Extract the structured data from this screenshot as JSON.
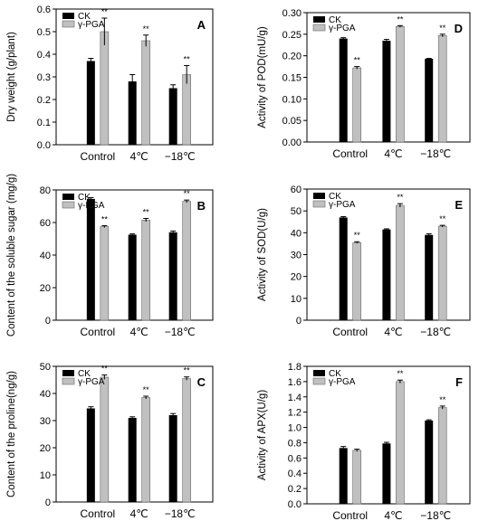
{
  "categories": [
    "Control",
    "4℃",
    "−18℃"
  ],
  "legend": [
    "CK",
    "γ-PGA"
  ],
  "colors": {
    "ck": "#000000",
    "pga": "#c0c0c0"
  },
  "chart_data": [
    {
      "panel": "A",
      "type": "bar",
      "ylabel": "Dry weight (g/plant)",
      "ylim": [
        0,
        0.6
      ],
      "yticks": [
        0.0,
        0.1,
        0.2,
        0.3,
        0.4,
        0.5,
        0.6
      ],
      "ytick_labels": [
        "0.0",
        "0.1",
        "0.2",
        "0.3",
        "0.4",
        "0.5",
        "0.6"
      ],
      "categories": [
        "Control",
        "4℃",
        "−18℃"
      ],
      "series": [
        {
          "name": "CK",
          "values": [
            0.37,
            0.28,
            0.25
          ],
          "errors": [
            0.012,
            0.03,
            0.015
          ],
          "sig": [
            "",
            "",
            ""
          ]
        },
        {
          "name": "γ-PGA",
          "values": [
            0.5,
            0.46,
            0.31
          ],
          "errors": [
            0.06,
            0.025,
            0.04
          ],
          "sig": [
            "**",
            "**",
            "**"
          ]
        }
      ],
      "grid": false,
      "legend_position": "top-left"
    },
    {
      "panel": "B",
      "type": "bar",
      "ylabel": "Content of the soluble sugar (mg/g)",
      "ylim": [
        0,
        80
      ],
      "yticks": [
        0,
        20,
        40,
        60,
        80
      ],
      "ytick_labels": [
        "0",
        "20",
        "40",
        "60",
        "80"
      ],
      "categories": [
        "Control",
        "4℃",
        "−18℃"
      ],
      "series": [
        {
          "name": "CK",
          "values": [
            74.5,
            52.5,
            54
          ],
          "errors": [
            0.8,
            0.5,
            0.8
          ],
          "sig": [
            "",
            "",
            ""
          ]
        },
        {
          "name": "γ-PGA",
          "values": [
            57.5,
            61.5,
            73
          ],
          "errors": [
            0.6,
            1.0,
            0.8
          ],
          "sig": [
            "**",
            "**",
            "**"
          ]
        }
      ],
      "grid": false,
      "legend_position": "top-left"
    },
    {
      "panel": "C",
      "type": "bar",
      "ylabel": "Content of the proline(ng/g)",
      "ylim": [
        0,
        50
      ],
      "yticks": [
        0,
        10,
        20,
        30,
        40,
        50
      ],
      "ytick_labels": [
        "0",
        "10",
        "20",
        "30",
        "40",
        "50"
      ],
      "categories": [
        "Control",
        "4℃",
        "−18℃"
      ],
      "series": [
        {
          "name": "CK",
          "values": [
            34.5,
            31,
            32
          ],
          "errors": [
            0.6,
            0.4,
            0.6
          ],
          "sig": [
            "",
            "",
            ""
          ]
        },
        {
          "name": "γ-PGA",
          "values": [
            46,
            38.5,
            45.5
          ],
          "errors": [
            0.8,
            0.5,
            0.6
          ],
          "sig": [
            "**",
            "**",
            "**"
          ]
        }
      ],
      "grid": false,
      "legend_position": "top-left"
    },
    {
      "panel": "D",
      "type": "bar",
      "ylabel": "Activity of POD(mU/g)",
      "ylim": [
        0,
        0.3
      ],
      "yticks": [
        0,
        0.05,
        0.1,
        0.15,
        0.2,
        0.25,
        0.3
      ],
      "ytick_labels": [
        "0.00",
        "0.05",
        "0.10",
        "0.15",
        "0.20",
        "0.25",
        "0.30"
      ],
      "categories": [
        "Control",
        "4℃",
        "−18℃"
      ],
      "series": [
        {
          "name": "CK",
          "values": [
            0.24,
            0.235,
            0.193
          ],
          "errors": [
            0.002,
            0.003,
            0.001
          ],
          "sig": [
            "",
            "",
            ""
          ]
        },
        {
          "name": "γ-PGA",
          "values": [
            0.172,
            0.268,
            0.247
          ],
          "errors": [
            0.003,
            0.002,
            0.003
          ],
          "sig": [
            "**",
            "**",
            "**"
          ]
        }
      ],
      "grid": false,
      "legend_position": "top-left"
    },
    {
      "panel": "E",
      "type": "bar",
      "ylabel": "Activity of SOD(U/g)",
      "ylim": [
        0,
        60
      ],
      "yticks": [
        0,
        10,
        20,
        30,
        40,
        50,
        60
      ],
      "ytick_labels": [
        "0",
        "10",
        "20",
        "30",
        "40",
        "50",
        "60"
      ],
      "categories": [
        "Control",
        "4℃",
        "−18℃"
      ],
      "series": [
        {
          "name": "CK",
          "values": [
            47,
            41.5,
            39
          ],
          "errors": [
            0.4,
            0.3,
            0.5
          ],
          "sig": [
            "",
            "",
            ""
          ]
        },
        {
          "name": "γ-PGA",
          "values": [
            35.5,
            52.5,
            43
          ],
          "errors": [
            0.4,
            0.8,
            0.4
          ],
          "sig": [
            "**",
            "**",
            "**"
          ]
        }
      ],
      "grid": false,
      "legend_position": "top-left"
    },
    {
      "panel": "F",
      "type": "bar",
      "ylabel": "Activity of APX(U/g)",
      "ylim": [
        0,
        1.8
      ],
      "yticks": [
        0,
        0.2,
        0.4,
        0.6,
        0.8,
        1.0,
        1.2,
        1.4,
        1.6,
        1.8
      ],
      "ytick_labels": [
        "0.0",
        "0.2",
        "0.4",
        "0.6",
        "0.8",
        "1.0",
        "1.2",
        "1.4",
        "1.6",
        "1.8"
      ],
      "categories": [
        "Control",
        "4℃",
        "−18℃"
      ],
      "series": [
        {
          "name": "CK",
          "values": [
            0.73,
            0.79,
            1.09
          ],
          "errors": [
            0.02,
            0.015,
            0.01
          ],
          "sig": [
            "",
            "",
            ""
          ]
        },
        {
          "name": "γ-PGA",
          "values": [
            0.7,
            1.6,
            1.26
          ],
          "errors": [
            0.015,
            0.02,
            0.02
          ],
          "sig": [
            "",
            "**",
            "**"
          ]
        }
      ],
      "grid": false,
      "legend_position": "top-left"
    }
  ]
}
